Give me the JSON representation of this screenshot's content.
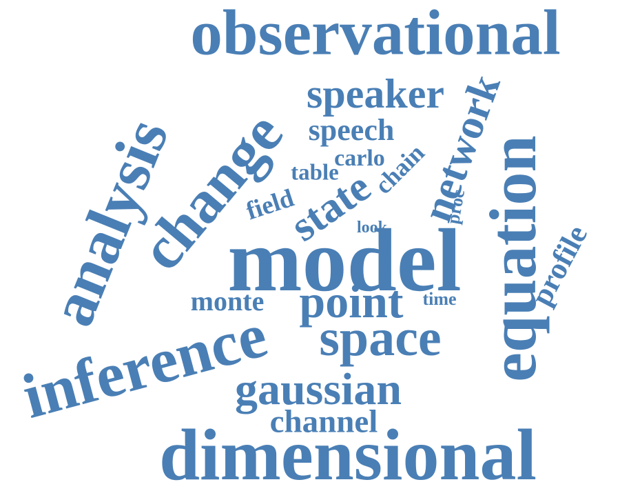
{
  "word_cloud": {
    "color": "#4a7fb5",
    "words": {
      "observational": "observational",
      "speaker": "speaker",
      "network": "network",
      "change": "change",
      "analysis": "analysis",
      "equation": "equation",
      "speech": "speech",
      "carlo": "carlo",
      "chain": "chain",
      "table": "table",
      "state": "state",
      "field": "field",
      "proc": "proc",
      "look": "look",
      "model": "model",
      "profile": "profile",
      "monte": "monte",
      "point": "point",
      "time": "time",
      "inference": "inference",
      "space": "space",
      "gaussian": "gaussian",
      "channel": "channel",
      "dimensional": "dimensional"
    }
  }
}
